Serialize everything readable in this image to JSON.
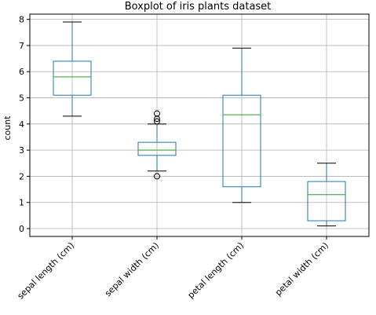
{
  "chart_data": {
    "type": "boxplot",
    "title": "Boxplot of iris plants dataset",
    "xlabel": "",
    "ylabel": "count",
    "ylim": [
      -0.3,
      8.2
    ],
    "yticks": [
      0,
      1,
      2,
      3,
      4,
      5,
      6,
      7,
      8
    ],
    "grid": true,
    "categories": [
      "sepal length (cm)",
      "sepal width (cm)",
      "petal length (cm)",
      "petal width (cm)"
    ],
    "boxes": [
      {
        "label": "sepal length (cm)",
        "whislo": 4.3,
        "q1": 5.1,
        "median": 5.8,
        "q3": 6.4,
        "whishi": 7.9,
        "fliers": []
      },
      {
        "label": "sepal width (cm)",
        "whislo": 2.2,
        "q1": 2.8,
        "median": 3.0,
        "q3": 3.3,
        "whishi": 4.0,
        "fliers": [
          4.1,
          4.2,
          4.4,
          2.0
        ]
      },
      {
        "label": "petal length (cm)",
        "whislo": 1.0,
        "q1": 1.6,
        "median": 4.35,
        "q3": 5.1,
        "whishi": 6.9,
        "fliers": []
      },
      {
        "label": "petal width (cm)",
        "whislo": 0.1,
        "q1": 0.3,
        "median": 1.3,
        "q3": 1.8,
        "whishi": 2.5,
        "fliers": []
      }
    ],
    "colors": {
      "box": "#1f77b4",
      "median": "#2ca02c",
      "cap": "#000000",
      "grid": "#b0b0b0"
    }
  }
}
